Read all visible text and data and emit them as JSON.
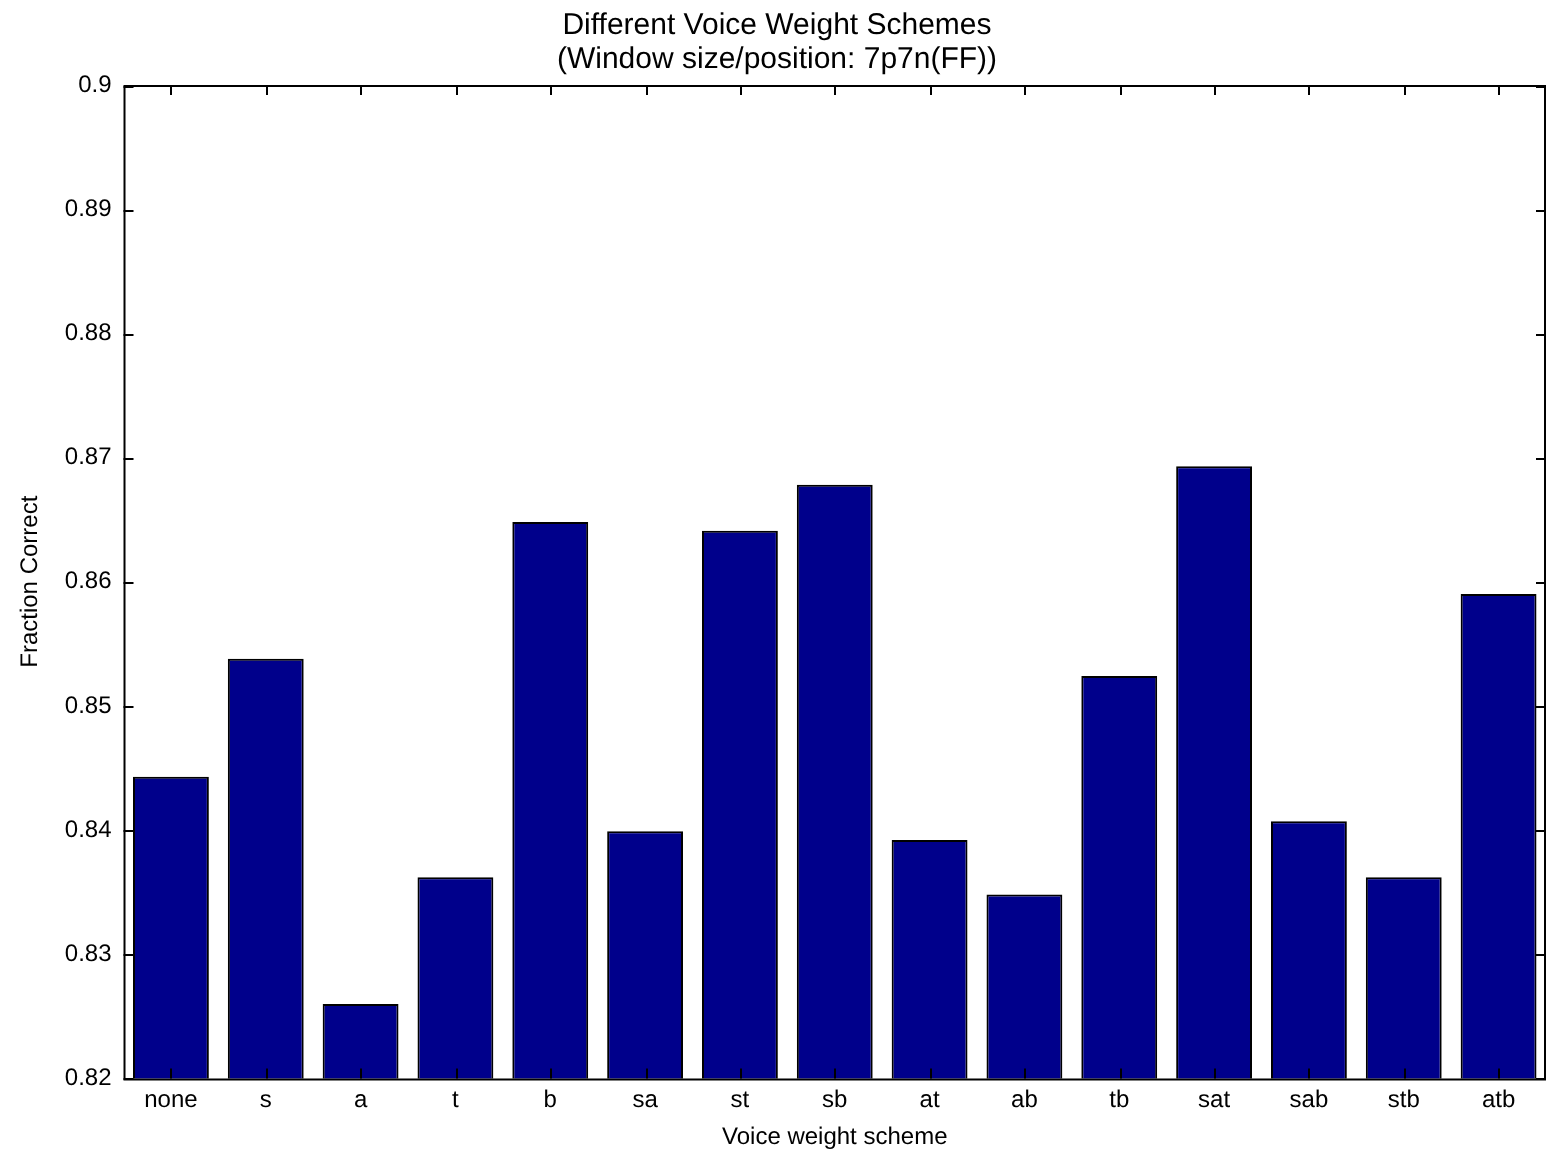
{
  "chart_data": {
    "type": "bar",
    "title": "Different Voice Weight Schemes",
    "subtitle": "(Window size/position: 7p7n(FF))",
    "xlabel": "Voice weight scheme",
    "ylabel": "Fraction Correct",
    "categories": [
      "none",
      "s",
      "a",
      "t",
      "b",
      "sa",
      "st",
      "sb",
      "at",
      "ab",
      "tb",
      "sat",
      "sab",
      "stb",
      "atb"
    ],
    "values": [
      0.8443,
      0.8538,
      0.826,
      0.8362,
      0.8648,
      0.8399,
      0.8641,
      0.8678,
      0.8392,
      0.8348,
      0.8524,
      0.8693,
      0.8407,
      0.8362,
      0.859
    ],
    "color": "#00008b",
    "ylim": [
      0.82,
      0.9
    ],
    "yticks": [
      0.82,
      0.83,
      0.84,
      0.85,
      0.86,
      0.87,
      0.88,
      0.89,
      0.9
    ],
    "grid": false,
    "legend": false
  }
}
